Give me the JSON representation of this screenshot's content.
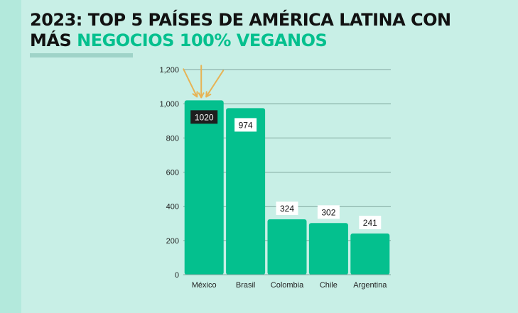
{
  "title": {
    "part1": "2023: TOP 5 PAÍSES DE AMÉRICA LATINA CON",
    "part2": "MÁS",
    "highlight": "NEGOCIOS 100% VEGANOS"
  },
  "colors": {
    "background": "#c8efe6",
    "bar": "#04c08e",
    "highlight": "#04c08e",
    "arrow": "#e7b354",
    "label_dark_bg": "#1e1e1e",
    "grid": "#7fa69d"
  },
  "chart_data": {
    "type": "bar",
    "title": "2023: TOP 5 PAÍSES DE AMÉRICA LATINA CON MÁS NEGOCIOS 100% VEGANOS",
    "categories": [
      "México",
      "Brasil",
      "Colombia",
      "Chile",
      "Argentina"
    ],
    "values": [
      1020,
      974,
      324,
      302,
      241
    ],
    "data_labels": [
      "1020",
      "974",
      "324",
      "302",
      "241"
    ],
    "yticks": [
      "0",
      "200",
      "400",
      "600",
      "800",
      "1,000",
      "1,200"
    ],
    "ytick_values": [
      0,
      200,
      400,
      600,
      800,
      1000,
      1200
    ],
    "ylim": [
      0,
      1200
    ],
    "xlabel": "",
    "ylabel": "",
    "grid": true,
    "highlighted_category": "México"
  }
}
